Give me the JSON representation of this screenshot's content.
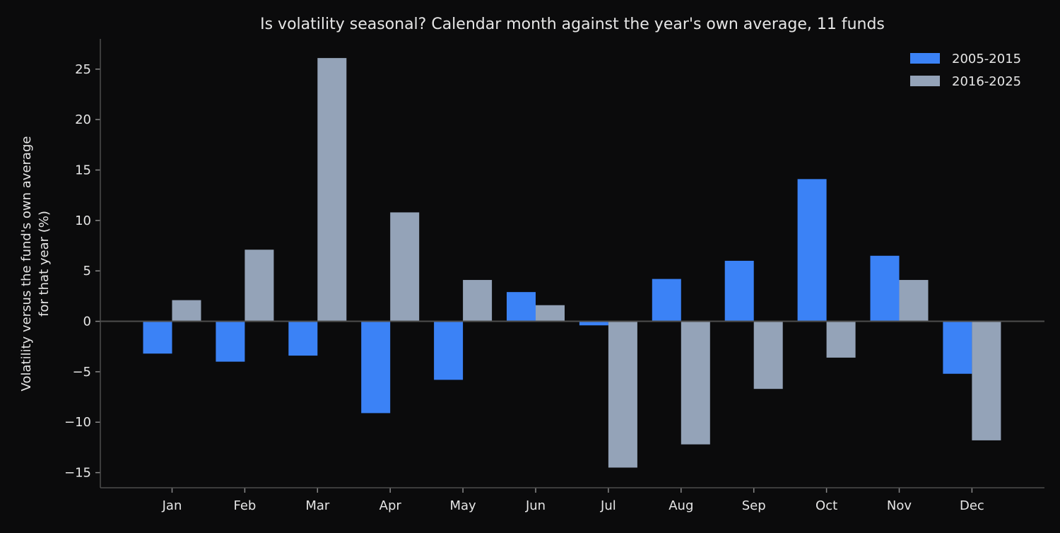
{
  "chart_data": {
    "type": "bar",
    "title": "Is volatility seasonal? Calendar month against the year's own average, 11 funds",
    "xlabel": "",
    "ylabel": "Volatility versus the fund's own average\nfor that year (%)",
    "categories": [
      "Jan",
      "Feb",
      "Mar",
      "Apr",
      "May",
      "Jun",
      "Jul",
      "Aug",
      "Sep",
      "Oct",
      "Nov",
      "Dec"
    ],
    "series": [
      {
        "name": "2005-2015",
        "color": "#3b82f6",
        "values": [
          -3.2,
          -4.0,
          -3.4,
          -9.1,
          -5.8,
          2.9,
          -0.4,
          4.2,
          6.0,
          14.1,
          6.5,
          -5.2
        ]
      },
      {
        "name": "2016-2025",
        "color": "#94a3b8",
        "values": [
          2.1,
          7.1,
          26.1,
          10.8,
          4.1,
          1.6,
          -14.5,
          -12.2,
          -6.7,
          -3.6,
          4.1,
          -11.8
        ]
      }
    ],
    "ylim": [
      -16.5,
      28
    ],
    "yticks": [
      -15,
      -10,
      -5,
      0,
      5,
      10,
      15,
      20,
      25
    ],
    "ytick_labels": [
      "−15",
      "−10",
      "−5",
      "0",
      "5",
      "10",
      "15",
      "20",
      "25"
    ],
    "grid": false,
    "legend_position": "top-right",
    "background": "#0b0b0c",
    "text_color": "#e6e6e6",
    "axis_color": "#4d4d4d"
  }
}
